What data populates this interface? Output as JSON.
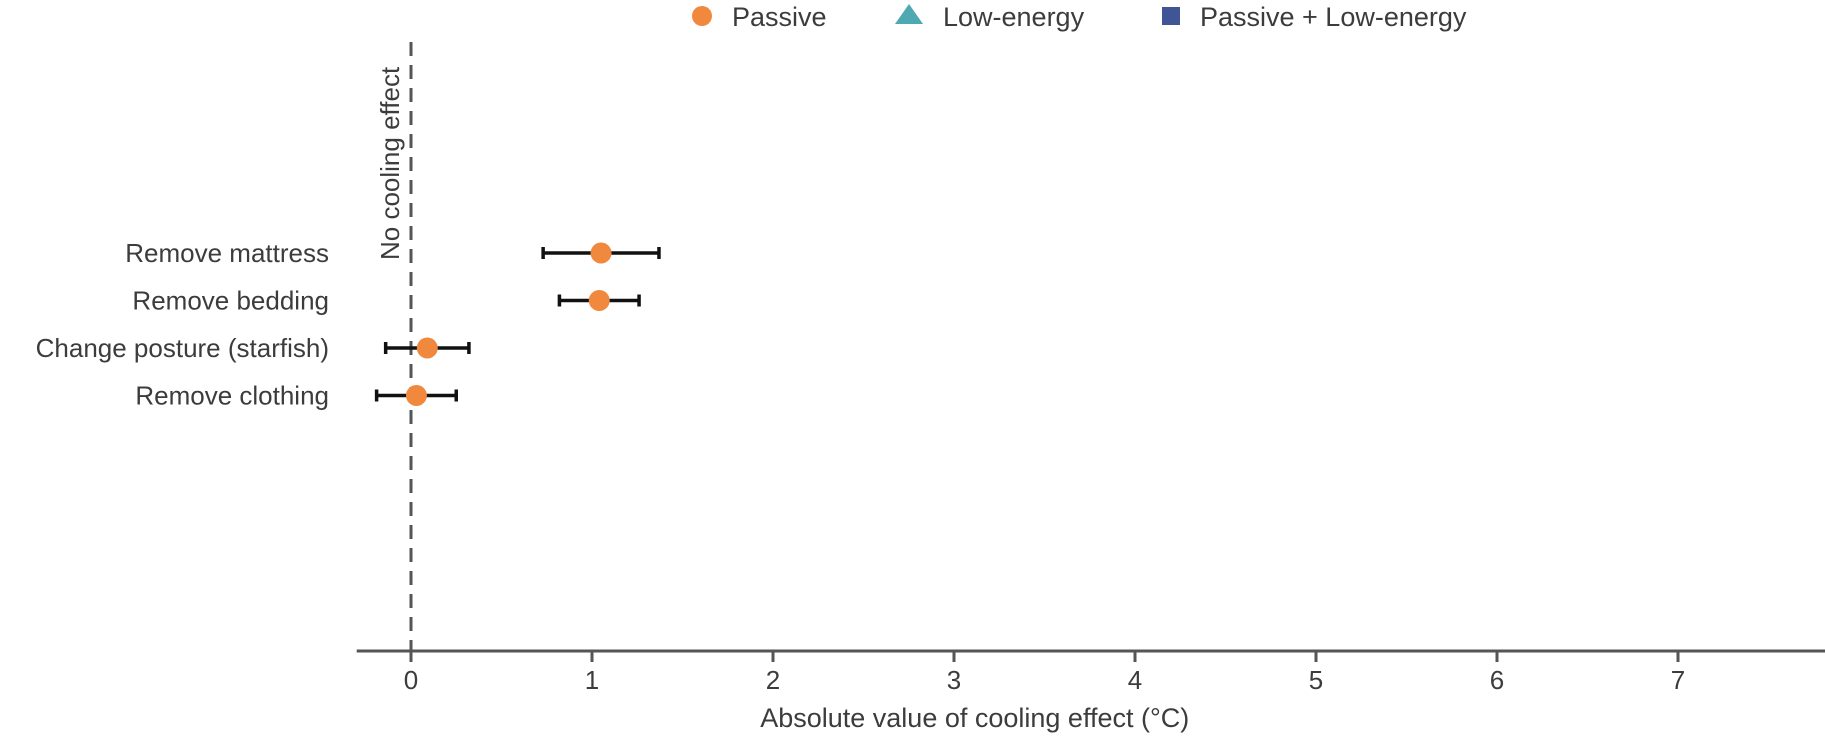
{
  "chart_data": {
    "type": "scatter",
    "subtype": "dot-and-whisker",
    "xlabel": "Absolute value of cooling effect (°C)",
    "ylabel": "",
    "xlim": [
      -0.3,
      7.8
    ],
    "xticks": [
      0,
      1,
      2,
      3,
      4,
      5,
      6,
      7
    ],
    "grid": false,
    "legend": {
      "position": "top-center",
      "entries": [
        {
          "label": "Passive",
          "marker": "circle",
          "color": "#F0883E"
        },
        {
          "label": "Low-energy",
          "marker": "triangle",
          "color": "#4FA9B2"
        },
        {
          "label": "Passive + Low-energy",
          "marker": "square",
          "color": "#3F5596"
        }
      ]
    },
    "reference_line": {
      "x": 0,
      "style": "dashed",
      "label": "No cooling effect"
    },
    "categories": [
      "Remove mattress",
      "Remove bedding",
      "Change posture (starfish)",
      "Remove clothing"
    ],
    "series": [
      {
        "name": "Passive",
        "color": "#F0883E",
        "marker": "circle",
        "points": [
          {
            "category": "Remove mattress",
            "value": 1.05,
            "low": 0.73,
            "high": 1.37
          },
          {
            "category": "Remove bedding",
            "value": 1.04,
            "low": 0.82,
            "high": 1.26
          },
          {
            "category": "Change posture (starfish)",
            "value": 0.09,
            "low": -0.14,
            "high": 0.32
          },
          {
            "category": "Remove clothing",
            "value": 0.03,
            "low": -0.19,
            "high": 0.25
          }
        ]
      }
    ],
    "colors": {
      "axis": "#555555",
      "errorbar": "#111111",
      "refline": "#555555"
    }
  }
}
